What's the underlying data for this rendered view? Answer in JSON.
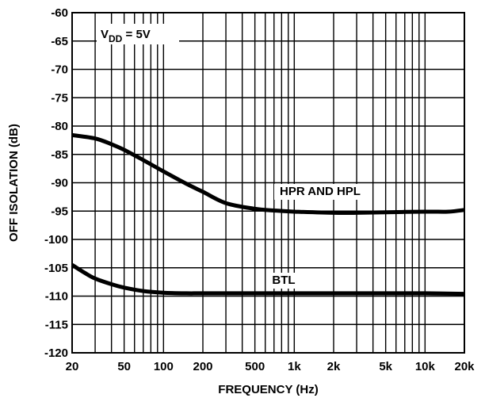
{
  "chart_data": {
    "type": "line",
    "xlabel": "FREQUENCY (Hz)",
    "ylabel": "OFF ISOLATION (dB)",
    "x_scale": "log",
    "xlim": [
      20,
      20000
    ],
    "ylim": [
      -120,
      -60
    ],
    "grid": true,
    "x_ticks": [
      20,
      50,
      100,
      200,
      500,
      1000,
      2000,
      5000,
      10000,
      20000
    ],
    "x_tick_labels": [
      "20",
      "50",
      "100",
      "200",
      "500",
      "1k",
      "2k",
      "5k",
      "10k",
      "20k"
    ],
    "y_ticks": [
      -60,
      -65,
      -70,
      -75,
      -80,
      -85,
      -90,
      -95,
      -100,
      -105,
      -110,
      -115,
      -120
    ],
    "y_tick_labels": [
      "-60",
      "-65",
      "-70",
      "-75",
      "-80",
      "-85",
      "-90",
      "-95",
      "-100",
      "-105",
      "-110",
      "-115",
      "-120"
    ],
    "annotation": {
      "main": "V",
      "sub": "DD",
      "rest": " = 5V"
    },
    "series": [
      {
        "name": "HPR AND HPL",
        "x": [
          20,
          30,
          40,
          50,
          70,
          100,
          150,
          200,
          300,
          500,
          700,
          1000,
          2000,
          3000,
          5000,
          10000,
          15000,
          20000
        ],
        "y": [
          -81.6,
          -82.2,
          -83.2,
          -84.2,
          -86.0,
          -88.0,
          -90.2,
          -91.6,
          -93.6,
          -94.6,
          -94.9,
          -95.1,
          -95.3,
          -95.3,
          -95.2,
          -95.1,
          -95.1,
          -94.8
        ]
      },
      {
        "name": "BTL",
        "x": [
          20,
          25,
          30,
          40,
          50,
          70,
          100,
          150,
          200,
          500,
          1000,
          2000,
          5000,
          10000,
          20000
        ],
        "y": [
          -104.5,
          -105.9,
          -106.9,
          -107.9,
          -108.5,
          -109.1,
          -109.4,
          -109.5,
          -109.5,
          -109.5,
          -109.5,
          -109.5,
          -109.5,
          -109.5,
          -109.6
        ]
      }
    ]
  }
}
